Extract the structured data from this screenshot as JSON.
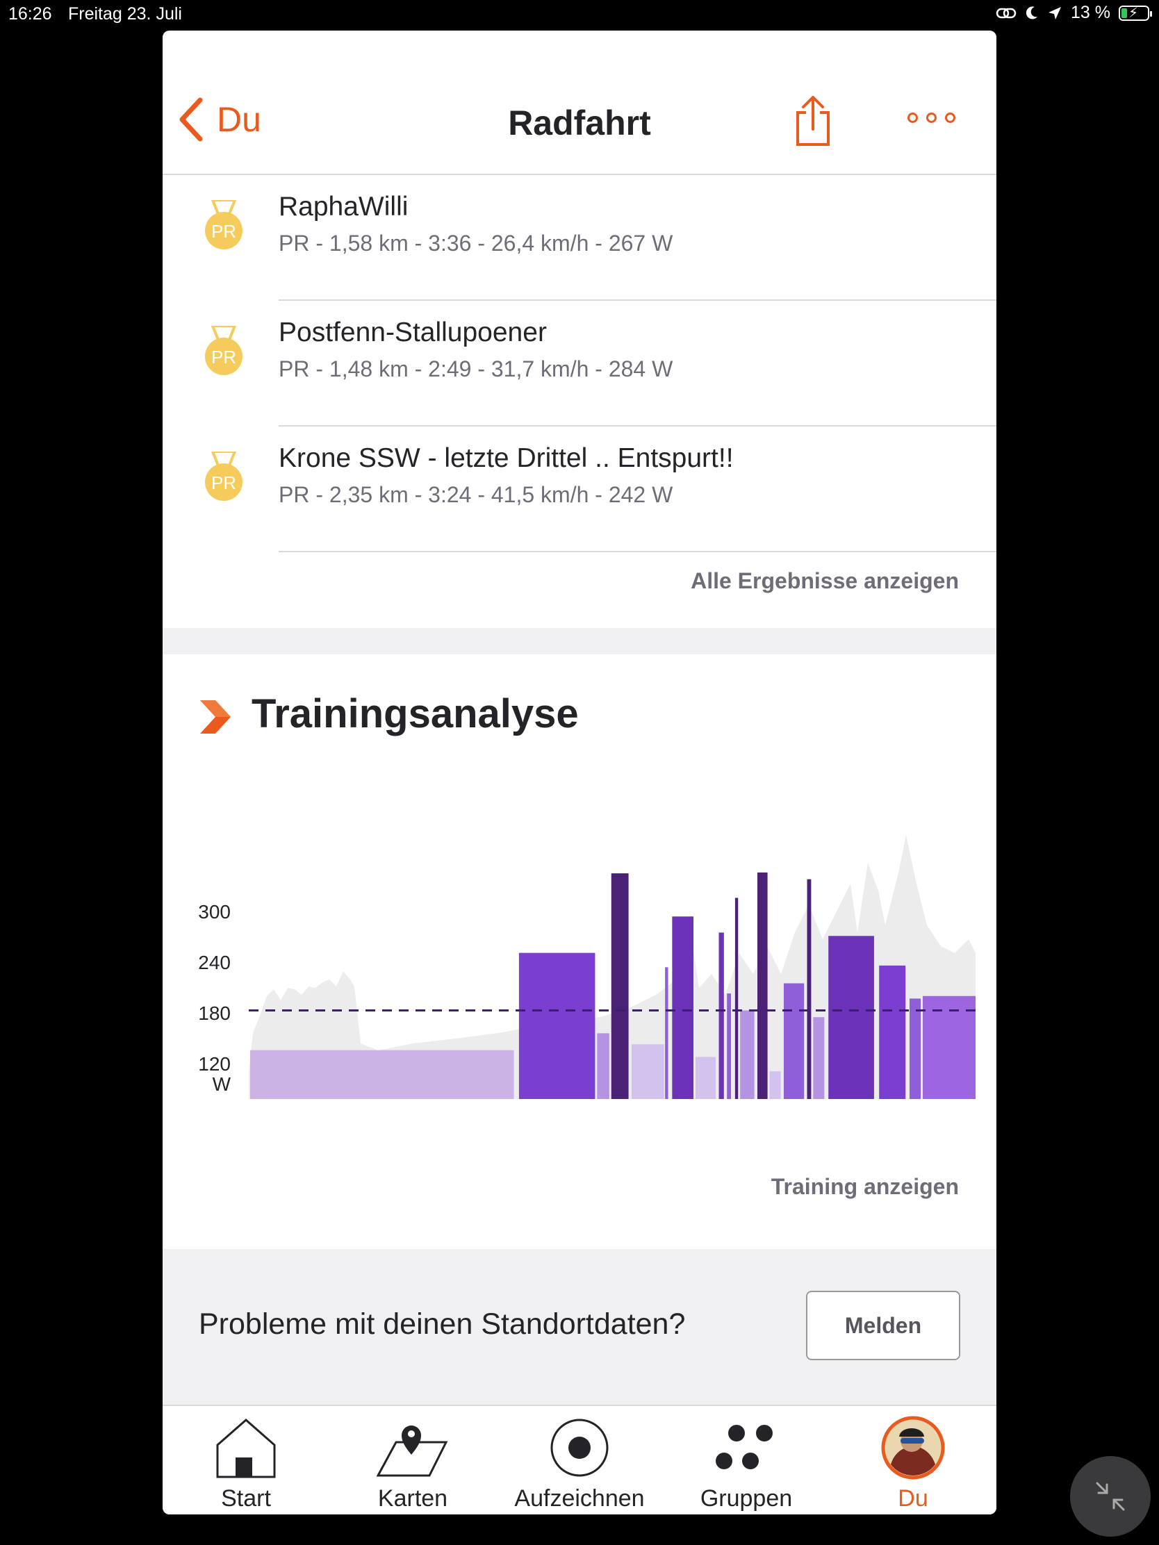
{
  "status_bar": {
    "time": "16:26",
    "date": "Freitag 23. Juli",
    "battery": "13 %"
  },
  "navbar": {
    "back_label": "Du",
    "title": "Radfahrt"
  },
  "segments": [
    {
      "badge": "PR",
      "name": "RaphaWilli",
      "stats": "PR - 1,58 km - 3:36 - 26,4 km/h - 267 W"
    },
    {
      "badge": "PR",
      "name": "Postfenn-Stallupoener",
      "stats": "PR - 1,48 km - 2:49 - 31,7 km/h - 284 W"
    },
    {
      "badge": "PR",
      "name": "Krone SSW - letzte Drittel .. Entspurt!!",
      "stats": "PR - 2,35 km - 3:24 - 41,5 km/h - 242 W"
    }
  ],
  "all_results_link": "Alle Ergebnisse anzeigen",
  "training_analysis": {
    "title": "Trainingsanalyse",
    "link": "Training anzeigen"
  },
  "chart_data": {
    "type": "bar",
    "ylabel": "W",
    "y_ticks": [
      120,
      180,
      240,
      300
    ],
    "ylim": [
      75,
      355
    ],
    "reference_line": 183,
    "grid": false,
    "bars": [
      {
        "start": 0,
        "end": 260,
        "value": 136,
        "color": "#cbb3e6"
      },
      {
        "start": 265,
        "end": 340,
        "value": 251,
        "color": "#7a3fd1"
      },
      {
        "start": 342,
        "end": 354,
        "value": 156,
        "color": "#b593e3"
      },
      {
        "start": 356,
        "end": 373,
        "value": 345,
        "color": "#4a2175"
      },
      {
        "start": 376,
        "end": 408,
        "value": 143,
        "color": "#d4c2ee"
      },
      {
        "start": 409,
        "end": 412,
        "value": 234,
        "color": "#8f5fd8"
      },
      {
        "start": 416,
        "end": 437,
        "value": 294,
        "color": "#6a33b8"
      },
      {
        "start": 439,
        "end": 459,
        "value": 128,
        "color": "#d4c2ee"
      },
      {
        "start": 462,
        "end": 467,
        "value": 275,
        "color": "#6a33b8"
      },
      {
        "start": 470,
        "end": 474,
        "value": 203,
        "color": "#8f5fd8"
      },
      {
        "start": 478,
        "end": 481,
        "value": 316,
        "color": "#4a2175"
      },
      {
        "start": 483,
        "end": 497,
        "value": 183,
        "color": "#b593e3"
      },
      {
        "start": 500,
        "end": 510,
        "value": 346,
        "color": "#4a2175"
      },
      {
        "start": 512,
        "end": 523,
        "value": 111,
        "color": "#d4c2ee"
      },
      {
        "start": 526,
        "end": 546,
        "value": 215,
        "color": "#8f5fd8"
      },
      {
        "start": 549,
        "end": 553,
        "value": 338,
        "color": "#4a2175"
      },
      {
        "start": 555,
        "end": 566,
        "value": 175,
        "color": "#b593e3"
      },
      {
        "start": 570,
        "end": 615,
        "value": 271,
        "color": "#6a33b8"
      },
      {
        "start": 620,
        "end": 646,
        "value": 236,
        "color": "#7a3fd1"
      },
      {
        "start": 650,
        "end": 661,
        "value": 197,
        "color": "#8f5fd8"
      },
      {
        "start": 663,
        "end": 716,
        "value": 200,
        "color": "#9b66e0"
      }
    ]
  },
  "location_issue": {
    "text": "Probleme mit deinen Standortdaten?",
    "button": "Melden"
  },
  "tabs": [
    {
      "label": "Start",
      "icon": "home-icon"
    },
    {
      "label": "Karten",
      "icon": "map-icon"
    },
    {
      "label": "Aufzeichnen",
      "icon": "record-icon"
    },
    {
      "label": "Gruppen",
      "icon": "groups-icon"
    },
    {
      "label": "Du",
      "icon": "avatar-icon"
    }
  ],
  "colors": {
    "accent": "#ea5a1e",
    "medal": "#f5cc5c",
    "reference_line": "#3b1f6e"
  }
}
